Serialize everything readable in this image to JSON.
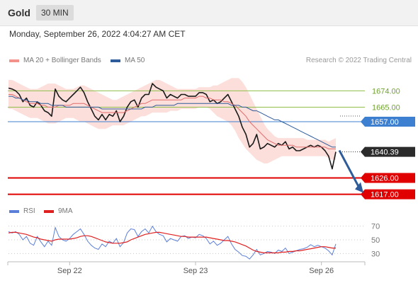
{
  "header": {
    "title": "Gold",
    "timeframe": "30 MIN"
  },
  "timestamp": "Monday, September 26, 2022 4:04:27 AM CET",
  "legend": {
    "bollinger": {
      "label": "MA 20 + Bollinger Bands",
      "color": "#f4918a"
    },
    "ma50": {
      "label": "MA 50",
      "color": "#2e5b9a"
    }
  },
  "credit": "Research © 2022 Trading Central",
  "rsi_legend": {
    "rsi": {
      "label": "RSI",
      "color": "#5b7fd9"
    },
    "ma9": {
      "label": "9MA",
      "color": "#e02020"
    }
  },
  "chart_data": [
    {
      "type": "line",
      "title": "",
      "xlabel": "",
      "ylabel": "",
      "x_ticks": [
        "Sep 22",
        "Sep 23",
        "Sep 26"
      ],
      "ylim": [
        1611,
        1687
      ],
      "grid": false,
      "levels": [
        {
          "label": "1674.00",
          "value": 1674.0,
          "kind": "resistance",
          "color": "#8fbf4a"
        },
        {
          "label": "1665.00",
          "value": 1665.0,
          "kind": "resistance",
          "color": "#8fbf4a"
        },
        {
          "label": "1657.00",
          "value": 1657.0,
          "kind": "pivot",
          "color": "#3d7fd0"
        },
        {
          "label": "1626.00",
          "value": 1626.0,
          "kind": "support",
          "color": "#e00000"
        },
        {
          "label": "1617.00",
          "value": 1617.0,
          "kind": "support",
          "color": "#e00000"
        }
      ],
      "current_price": {
        "label": "1640.39",
        "value": 1640.39
      },
      "forecast": {
        "from": 1640.39,
        "to": 1619.0,
        "color": "#2e5b9a"
      },
      "series": [
        {
          "name": "Gold",
          "values": [
            1675.5,
            1675.0,
            1674.0,
            1672.0,
            1668.0,
            1670.0,
            1666.0,
            1665.0,
            1668.0,
            1666.0,
            1663.0,
            1662.0,
            1660.0,
            1675.0,
            1671.0,
            1669.0,
            1668.0,
            1670.0,
            1672.0,
            1674.0,
            1676.0,
            1673.0,
            1668.0,
            1664.0,
            1660.0,
            1658.0,
            1661.0,
            1658.0,
            1661.0,
            1660.0,
            1663.0,
            1657.0,
            1660.0,
            1665.0,
            1668.0,
            1669.0,
            1665.0,
            1670.0,
            1672.0,
            1672.0,
            1678.0,
            1676.0,
            1675.0,
            1674.0,
            1670.0,
            1672.0,
            1671.0,
            1670.0,
            1672.0,
            1672.0,
            1671.0,
            1671.0,
            1671.0,
            1673.0,
            1673.0,
            1672.0,
            1668.0,
            1669.0,
            1667.0,
            1668.0,
            1670.0,
            1672.0,
            1668.0,
            1664.0,
            1660.0,
            1654.0,
            1650.0,
            1643.0,
            1645.0,
            1650.0,
            1642.0,
            1643.0,
            1645.0,
            1644.0,
            1643.0,
            1645.0,
            1644.0,
            1646.0,
            1642.0,
            1643.0,
            1641.0,
            1641.0,
            1642.0,
            1643.0,
            1644.0,
            1643.0,
            1644.0,
            1643.0,
            1641.0,
            1638.0,
            1631.0,
            1640.39
          ]
        },
        {
          "name": "MA 20",
          "values": [
            1672.0,
            1672.0,
            1671.0,
            1670.0,
            1669.0,
            1668.0,
            1667.0,
            1667.0,
            1667.0,
            1666.0,
            1666.0,
            1665.0,
            1665.0,
            1665.0,
            1666.0,
            1666.0,
            1666.0,
            1666.0,
            1667.0,
            1667.0,
            1667.0,
            1667.0,
            1666.0,
            1665.0,
            1664.0,
            1663.0,
            1662.0,
            1662.0,
            1662.0,
            1662.0,
            1662.0,
            1662.0,
            1662.0,
            1663.0,
            1664.0,
            1665.0,
            1666.0,
            1667.0,
            1667.0,
            1668.0,
            1669.0,
            1669.0,
            1669.0,
            1669.0,
            1669.0,
            1669.0,
            1669.0,
            1669.0,
            1669.0,
            1670.0,
            1670.0,
            1670.0,
            1670.0,
            1671.0,
            1671.0,
            1670.0,
            1670.0,
            1669.0,
            1669.0,
            1669.0,
            1668.0,
            1668.0,
            1667.0,
            1666.0,
            1664.0,
            1662.0,
            1660.0,
            1657.0,
            1655.0,
            1653.0,
            1651.0,
            1649.0,
            1647.0,
            1646.0,
            1645.0,
            1644.0,
            1644.0,
            1644.0,
            1644.0,
            1644.0,
            1643.0,
            1643.0,
            1643.0,
            1643.0,
            1643.0,
            1643.0,
            1643.0,
            1643.0,
            1643.0,
            1642.0,
            1642.0,
            1642.0
          ]
        },
        {
          "name": "MA 50",
          "values": [
            1671.0,
            1671.0,
            1670.0,
            1670.0,
            1669.0,
            1669.0,
            1668.0,
            1668.0,
            1668.0,
            1667.0,
            1667.0,
            1667.0,
            1666.0,
            1666.0,
            1666.0,
            1666.0,
            1665.0,
            1665.0,
            1665.0,
            1665.0,
            1665.0,
            1665.0,
            1665.0,
            1665.0,
            1665.0,
            1665.0,
            1664.0,
            1664.0,
            1664.0,
            1664.0,
            1664.0,
            1664.0,
            1664.0,
            1664.0,
            1664.0,
            1664.0,
            1664.0,
            1664.0,
            1665.0,
            1665.0,
            1665.0,
            1666.0,
            1666.0,
            1666.0,
            1666.0,
            1666.0,
            1666.0,
            1667.0,
            1667.0,
            1667.0,
            1667.0,
            1667.0,
            1667.0,
            1667.0,
            1667.0,
            1667.0,
            1667.0,
            1667.0,
            1667.0,
            1667.0,
            1667.0,
            1667.0,
            1666.0,
            1666.0,
            1666.0,
            1665.0,
            1665.0,
            1664.0,
            1663.0,
            1663.0,
            1662.0,
            1661.0,
            1660.0,
            1659.0,
            1658.0,
            1658.0,
            1657.0,
            1656.0,
            1655.0,
            1654.0,
            1653.0,
            1652.0,
            1651.0,
            1650.0,
            1649.0,
            1648.0,
            1647.0,
            1646.0,
            1645.0,
            1644.0,
            1643.0,
            1643.0
          ]
        },
        {
          "name": "Bollinger upper",
          "values": [
            1680.0,
            1680.0,
            1679.0,
            1678.0,
            1677.0,
            1676.0,
            1675.0,
            1675.0,
            1675.0,
            1676.0,
            1677.0,
            1678.0,
            1678.0,
            1678.0,
            1677.0,
            1676.0,
            1675.0,
            1675.0,
            1675.0,
            1676.0,
            1677.0,
            1677.0,
            1676.0,
            1675.0,
            1674.0,
            1673.0,
            1672.0,
            1671.0,
            1670.0,
            1669.0,
            1669.0,
            1670.0,
            1671.0,
            1672.0,
            1673.0,
            1674.0,
            1675.0,
            1676.0,
            1677.0,
            1678.0,
            1679.0,
            1680.0,
            1680.0,
            1679.0,
            1678.0,
            1677.0,
            1676.0,
            1675.0,
            1675.0,
            1675.0,
            1675.0,
            1675.0,
            1675.0,
            1676.0,
            1676.0,
            1676.0,
            1676.0,
            1677.0,
            1677.0,
            1678.0,
            1679.0,
            1680.0,
            1681.0,
            1681.0,
            1681.0,
            1679.0,
            1676.0,
            1672.0,
            1668.0,
            1664.0,
            1660.0,
            1656.0,
            1653.0,
            1651.0,
            1649.0,
            1648.0,
            1648.0,
            1648.0,
            1648.0,
            1648.0,
            1648.0,
            1648.0,
            1648.0,
            1647.0,
            1647.0,
            1647.0,
            1647.0,
            1647.0,
            1647.0,
            1646.0,
            1647.0,
            1648.0
          ]
        },
        {
          "name": "Bollinger lower",
          "values": [
            1664.0,
            1664.0,
            1663.0,
            1662.0,
            1661.0,
            1660.0,
            1659.0,
            1659.0,
            1659.0,
            1658.0,
            1657.0,
            1656.0,
            1656.0,
            1656.0,
            1657.0,
            1658.0,
            1659.0,
            1659.0,
            1659.0,
            1658.0,
            1657.0,
            1657.0,
            1656.0,
            1655.0,
            1654.0,
            1653.0,
            1653.0,
            1653.0,
            1654.0,
            1655.0,
            1655.0,
            1655.0,
            1655.0,
            1656.0,
            1657.0,
            1658.0,
            1659.0,
            1660.0,
            1660.0,
            1661.0,
            1662.0,
            1662.0,
            1662.0,
            1662.0,
            1662.0,
            1663.0,
            1663.0,
            1663.0,
            1664.0,
            1664.0,
            1664.0,
            1664.0,
            1664.0,
            1665.0,
            1665.0,
            1665.0,
            1664.0,
            1662.0,
            1660.0,
            1659.0,
            1658.0,
            1657.0,
            1655.0,
            1652.0,
            1648.0,
            1645.0,
            1642.0,
            1640.0,
            1638.0,
            1636.0,
            1635.0,
            1634.0,
            1634.0,
            1635.0,
            1636.0,
            1637.0,
            1638.0,
            1638.0,
            1638.0,
            1638.0,
            1638.0,
            1638.0,
            1638.0,
            1638.0,
            1638.0,
            1638.0,
            1638.0,
            1638.0,
            1638.0,
            1637.0,
            1636.0,
            1636.0
          ]
        }
      ]
    },
    {
      "type": "line",
      "title": "",
      "xlabel": "",
      "ylabel": "",
      "ylim": [
        20,
        80
      ],
      "y_ticks": [
        70,
        50,
        30
      ],
      "x_ticks": [
        "Sep 22",
        "Sep 23",
        "Sep 26"
      ],
      "series": [
        {
          "name": "RSI",
          "values": [
            62,
            60,
            62,
            58,
            50,
            55,
            45,
            42,
            55,
            47,
            40,
            48,
            42,
            68,
            55,
            50,
            48,
            52,
            58,
            62,
            66,
            58,
            48,
            42,
            38,
            36,
            44,
            40,
            48,
            45,
            52,
            40,
            46,
            60,
            66,
            65,
            55,
            62,
            66,
            60,
            70,
            62,
            58,
            56,
            47,
            52,
            50,
            48,
            55,
            56,
            52,
            54,
            53,
            58,
            56,
            52,
            44,
            48,
            42,
            45,
            50,
            55,
            44,
            36,
            32,
            27,
            26,
            22,
            28,
            36,
            28,
            30,
            33,
            32,
            30,
            35,
            33,
            38,
            30,
            32,
            34,
            36,
            37,
            39,
            43,
            40,
            42,
            40,
            38,
            34,
            28,
            44
          ]
        },
        {
          "name": "9MA",
          "values": [
            60,
            61,
            61,
            60,
            59,
            58,
            56,
            54,
            53,
            51,
            50,
            49,
            48,
            50,
            51,
            51,
            51,
            51,
            52,
            53,
            55,
            56,
            56,
            55,
            53,
            51,
            49,
            47,
            46,
            45,
            45,
            45,
            46,
            47,
            50,
            52,
            54,
            56,
            58,
            59,
            60,
            61,
            61,
            60,
            59,
            58,
            57,
            56,
            55,
            55,
            54,
            54,
            54,
            54,
            54,
            54,
            53,
            52,
            51,
            50,
            49,
            49,
            48,
            47,
            45,
            43,
            41,
            38,
            35,
            33,
            32,
            31,
            31,
            31,
            31,
            31,
            32,
            32,
            33,
            33,
            34,
            34,
            35,
            36,
            37,
            38,
            39,
            40,
            40,
            39,
            38,
            38
          ]
        }
      ]
    }
  ]
}
